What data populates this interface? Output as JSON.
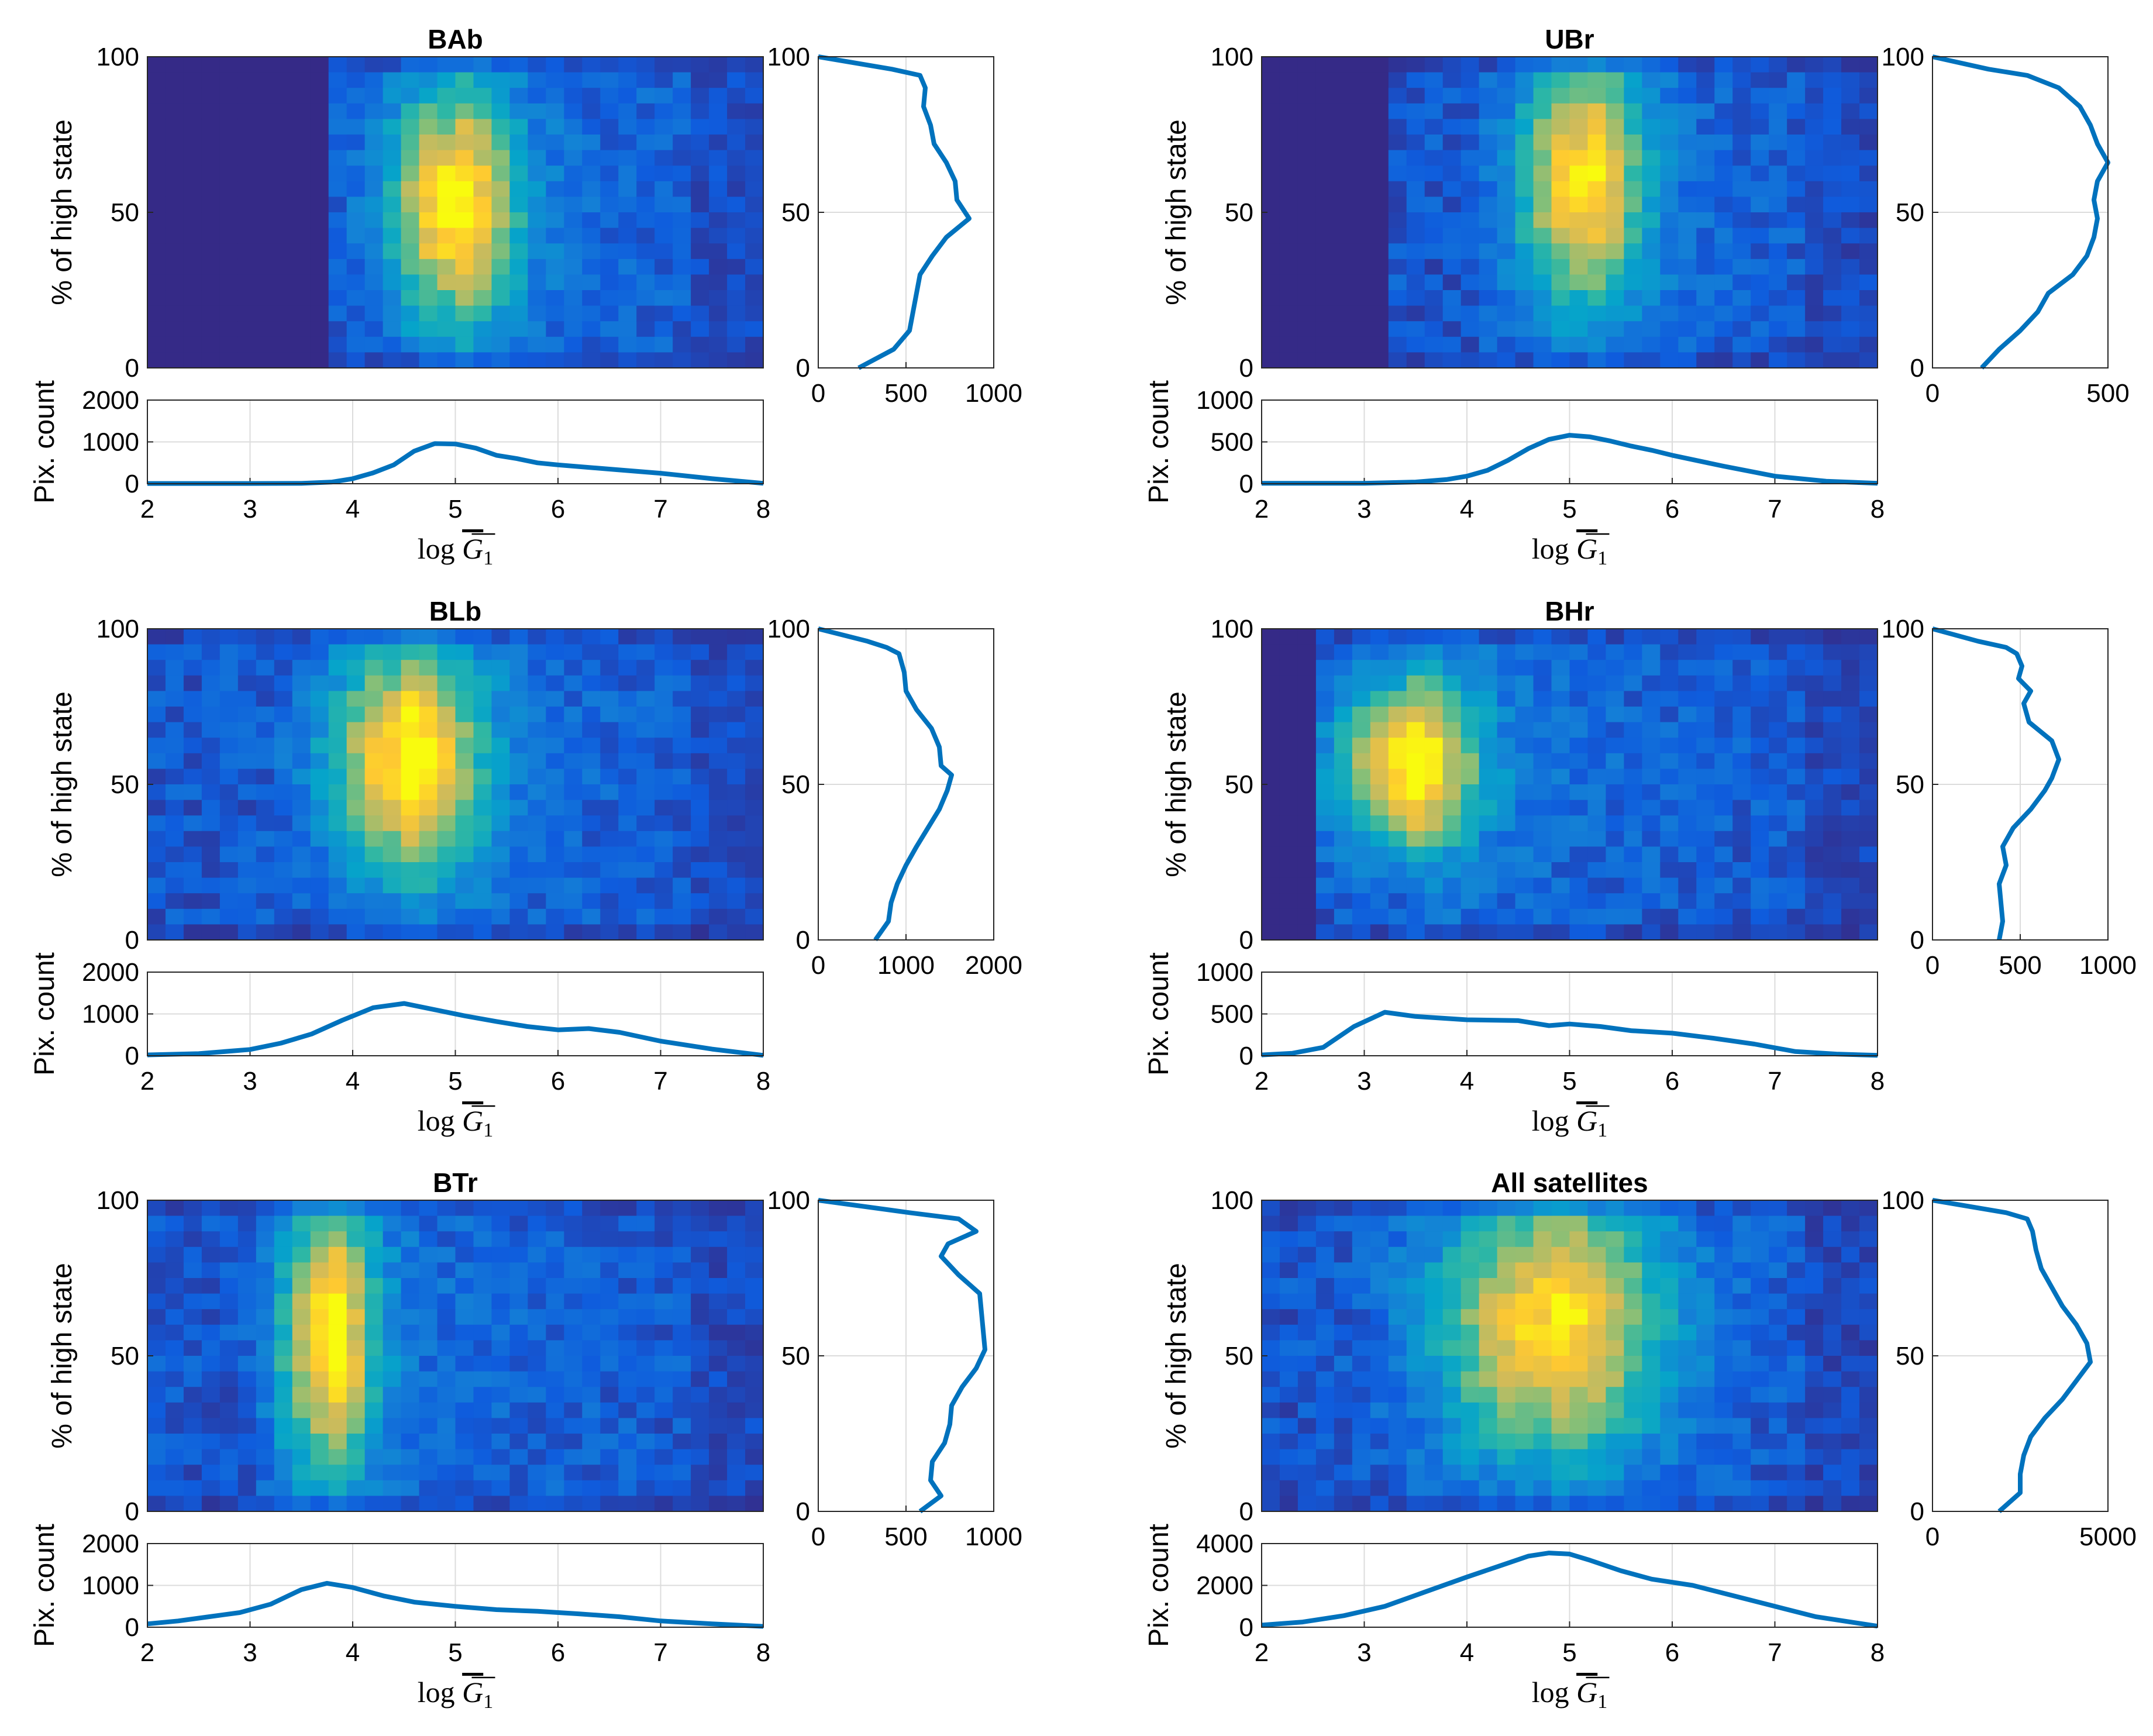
{
  "figure": {
    "colors": {
      "line": "#0072BD",
      "axis": "#262626",
      "grid": "#dcdcdc",
      "colormap": [
        "#352a87",
        "#0f5cdd",
        "#1481d6",
        "#06a4ca",
        "#2eb7a4",
        "#87bf77",
        "#d1bb59",
        "#fec832",
        "#f9fb0e"
      ]
    },
    "common": {
      "heatmap_ylabel": "% of high state",
      "hist_ylabel": "Pix. count",
      "xlabel_main": "log",
      "xlabel_var": "G",
      "xlabel_sub": "1",
      "heatmap_xrange": [
        2,
        8
      ],
      "heatmap_yticks": [
        "0",
        "50",
        "100"
      ],
      "hist_xticks": [
        "2",
        "3",
        "4",
        "5",
        "6",
        "7",
        "8"
      ]
    },
    "panels": [
      {
        "title": "BAb",
        "heat": {
          "x_peak": 4.95,
          "y_peak": 52,
          "sx": 0.42,
          "sy": 26,
          "tail": 0.35,
          "xmin_data": 3.8,
          "intensity": 1.0
        },
        "hist_yticks": [
          "0",
          "1000",
          "2000"
        ],
        "side_xticks": [
          "0",
          "500",
          "1000"
        ]
      },
      {
        "title": "UBr",
        "heat": {
          "x_peak": 5.1,
          "y_peak": 60,
          "sx": 0.42,
          "sy": 28,
          "tail": 0.3,
          "xmin_data": 3.2,
          "intensity": 0.95
        },
        "hist_yticks": [
          "0",
          "500",
          "1000"
        ],
        "side_xticks": [
          "0",
          "500"
        ]
      },
      {
        "title": "BLb",
        "heat": {
          "x_peak": 4.5,
          "y_peak": 58,
          "sx": 0.5,
          "sy": 25,
          "tail": 0.35,
          "xmin_data": 2.0,
          "intensity": 1.0
        },
        "hist_yticks": [
          "0",
          "1000",
          "2000"
        ],
        "side_xticks": [
          "0",
          "1000",
          "2000"
        ]
      },
      {
        "title": "BHr",
        "heat": {
          "x_peak": 3.4,
          "y_peak": 56,
          "sx": 0.45,
          "sy": 18,
          "tail": 0.5,
          "xmin_data": 2.5,
          "intensity": 1.0
        },
        "hist_yticks": [
          "0",
          "500",
          "1000"
        ],
        "side_xticks": [
          "0",
          "500",
          "1000"
        ]
      },
      {
        "title": "BTr",
        "heat": {
          "x_peak": 3.75,
          "y_peak": 56,
          "sx": 0.32,
          "sy": 30,
          "tail": 0.3,
          "xmin_data": 2.0,
          "intensity": 1.0
        },
        "hist_yticks": [
          "0",
          "1000",
          "2000"
        ],
        "side_xticks": [
          "0",
          "500",
          "1000"
        ]
      },
      {
        "title": "All satellites",
        "heat": {
          "x_peak": 4.8,
          "y_peak": 60,
          "sx": 0.75,
          "sy": 30,
          "tail": 0.2,
          "xmin_data": 2.0,
          "intensity": 0.95
        },
        "hist_yticks": [
          "0",
          "2000",
          "4000"
        ],
        "side_xticks": [
          "0",
          "5000"
        ]
      }
    ]
  },
  "chart_data": [
    {
      "type": "heatmap",
      "title": "BAb",
      "xlabel": "log G̅₁",
      "ylabel": "% of high state",
      "xlim": [
        2,
        8
      ],
      "ylim": [
        0,
        100
      ],
      "hist": {
        "type": "line",
        "ylabel": "Pix. count",
        "ylim": [
          0,
          2000
        ],
        "x": [
          2,
          2.5,
          3,
          3.5,
          3.8,
          4.0,
          4.2,
          4.4,
          4.6,
          4.8,
          5.0,
          5.2,
          5.4,
          5.6,
          5.8,
          6.0,
          6.5,
          7.0,
          7.5,
          8.0
        ],
        "y": [
          5,
          5,
          5,
          8,
          40,
          120,
          260,
          450,
          780,
          960,
          950,
          850,
          680,
          600,
          500,
          450,
          350,
          250,
          120,
          10
        ]
      },
      "side": {
        "type": "line",
        "xlim": [
          0,
          1000
        ],
        "ylim": [
          0,
          100
        ],
        "y": [
          0,
          6,
          12,
          18,
          24,
          30,
          36,
          42,
          48,
          54,
          60,
          66,
          72,
          78,
          84,
          90,
          94,
          96,
          100
        ],
        "x": [
          230,
          430,
          520,
          540,
          560,
          580,
          650,
          730,
          860,
          790,
          780,
          730,
          660,
          640,
          600,
          610,
          580,
          420,
          0
        ]
      }
    },
    {
      "type": "heatmap",
      "title": "UBr",
      "xlabel": "log G̅₁",
      "ylabel": "% of high state",
      "xlim": [
        2,
        8
      ],
      "ylim": [
        0,
        100
      ],
      "hist": {
        "type": "line",
        "ylabel": "Pix. count",
        "ylim": [
          0,
          1000
        ],
        "x": [
          2,
          2.5,
          3,
          3.5,
          3.8,
          4.0,
          4.2,
          4.4,
          4.6,
          4.8,
          5.0,
          5.2,
          5.4,
          5.6,
          5.8,
          6.0,
          6.5,
          7.0,
          7.5,
          8.0
        ],
        "y": [
          5,
          5,
          5,
          20,
          50,
          90,
          160,
          280,
          420,
          530,
          580,
          560,
          510,
          450,
          400,
          340,
          210,
          90,
          30,
          5
        ]
      },
      "side": {
        "type": "line",
        "xlim": [
          0,
          500
        ],
        "ylim": [
          0,
          100
        ],
        "y": [
          0,
          6,
          12,
          18,
          24,
          30,
          36,
          42,
          48,
          54,
          60,
          66,
          72,
          78,
          84,
          90,
          94,
          96,
          100
        ],
        "x": [
          140,
          190,
          250,
          300,
          330,
          400,
          440,
          460,
          470,
          460,
          470,
          500,
          470,
          450,
          420,
          360,
          270,
          160,
          0
        ]
      }
    },
    {
      "type": "heatmap",
      "title": "BLb",
      "xlabel": "log G̅₁",
      "ylabel": "% of high state",
      "xlim": [
        2,
        8
      ],
      "ylim": [
        0,
        100
      ],
      "hist": {
        "type": "line",
        "ylabel": "Pix. count",
        "ylim": [
          0,
          2000
        ],
        "x": [
          2,
          2.5,
          3,
          3.3,
          3.6,
          3.9,
          4.2,
          4.5,
          4.8,
          5.1,
          5.4,
          5.7,
          6.0,
          6.3,
          6.6,
          7.0,
          7.5,
          8.0
        ],
        "y": [
          20,
          50,
          150,
          300,
          520,
          850,
          1150,
          1250,
          1100,
          950,
          820,
          700,
          620,
          650,
          560,
          350,
          160,
          10
        ]
      },
      "side": {
        "type": "line",
        "xlim": [
          0,
          2000
        ],
        "ylim": [
          0,
          100
        ],
        "y": [
          0,
          6,
          12,
          18,
          24,
          30,
          36,
          42,
          48,
          53,
          56,
          62,
          68,
          74,
          80,
          86,
          92,
          94,
          96,
          100
        ],
        "x": [
          650,
          800,
          830,
          900,
          1000,
          1120,
          1250,
          1380,
          1470,
          1520,
          1400,
          1380,
          1290,
          1120,
          1000,
          980,
          920,
          780,
          560,
          0
        ]
      }
    },
    {
      "type": "heatmap",
      "title": "BHr",
      "xlabel": "log G̅₁",
      "ylabel": "% of high state",
      "xlim": [
        2,
        8
      ],
      "ylim": [
        0,
        100
      ],
      "hist": {
        "type": "line",
        "ylabel": "Pix. count",
        "ylim": [
          0,
          1000
        ],
        "x": [
          2,
          2.3,
          2.6,
          2.9,
          3.2,
          3.5,
          4.0,
          4.5,
          4.8,
          5.0,
          5.3,
          5.6,
          6.0,
          6.4,
          6.8,
          7.2,
          7.6,
          8.0
        ],
        "y": [
          10,
          30,
          100,
          350,
          520,
          470,
          430,
          420,
          360,
          380,
          350,
          300,
          270,
          210,
          140,
          50,
          20,
          5
        ]
      },
      "side": {
        "type": "line",
        "xlim": [
          0,
          1000
        ],
        "ylim": [
          0,
          100
        ],
        "y": [
          0,
          6,
          12,
          18,
          24,
          30,
          36,
          42,
          48,
          52,
          58,
          64,
          70,
          76,
          80,
          84,
          88,
          92,
          94,
          96,
          100
        ],
        "x": [
          380,
          400,
          390,
          380,
          420,
          400,
          460,
          560,
          640,
          680,
          720,
          680,
          550,
          520,
          560,
          490,
          510,
          480,
          420,
          260,
          0
        ]
      }
    },
    {
      "type": "heatmap",
      "title": "BTr",
      "xlabel": "log G̅₁",
      "ylabel": "% of high state",
      "xlim": [
        2,
        8
      ],
      "ylim": [
        0,
        100
      ],
      "hist": {
        "type": "line",
        "ylabel": "Pix. count",
        "ylim": [
          0,
          2000
        ],
        "x": [
          2,
          2.3,
          2.6,
          2.9,
          3.2,
          3.5,
          3.75,
          4.0,
          4.3,
          4.6,
          5.0,
          5.4,
          5.8,
          6.2,
          6.6,
          7.0,
          7.5,
          8.0
        ],
        "y": [
          80,
          150,
          250,
          350,
          550,
          900,
          1050,
          950,
          750,
          600,
          500,
          420,
          380,
          320,
          250,
          150,
          80,
          20
        ]
      },
      "side": {
        "type": "line",
        "xlim": [
          0,
          1000
        ],
        "ylim": [
          0,
          100
        ],
        "y": [
          0,
          5,
          10,
          16,
          22,
          28,
          34,
          40,
          46,
          52,
          58,
          64,
          70,
          76,
          82,
          86,
          90,
          94,
          96,
          100
        ],
        "x": [
          580,
          700,
          640,
          650,
          720,
          750,
          760,
          820,
          900,
          950,
          940,
          930,
          920,
          800,
          700,
          740,
          900,
          800,
          520,
          0
        ]
      }
    },
    {
      "type": "heatmap",
      "title": "All satellites",
      "xlabel": "log G̅₁",
      "ylabel": "% of high state",
      "xlim": [
        2,
        8
      ],
      "ylim": [
        0,
        100
      ],
      "hist": {
        "type": "line",
        "ylabel": "Pix. count",
        "ylim": [
          0,
          4000
        ],
        "x": [
          2,
          2.4,
          2.8,
          3.2,
          3.6,
          4.0,
          4.3,
          4.6,
          4.8,
          5.0,
          5.2,
          5.5,
          5.8,
          6.2,
          6.6,
          7.0,
          7.4,
          7.8,
          8.0
        ],
        "y": [
          100,
          250,
          550,
          1000,
          1700,
          2400,
          2900,
          3400,
          3550,
          3500,
          3200,
          2700,
          2300,
          2000,
          1500,
          1000,
          500,
          200,
          50
        ]
      },
      "side": {
        "type": "line",
        "xlim": [
          0,
          5000
        ],
        "ylim": [
          0,
          100
        ],
        "y": [
          0,
          6,
          12,
          18,
          24,
          30,
          36,
          42,
          48,
          54,
          60,
          66,
          72,
          78,
          84,
          90,
          94,
          96,
          100
        ],
        "x": [
          1900,
          2500,
          2500,
          2600,
          2800,
          3200,
          3700,
          4100,
          4500,
          4400,
          4100,
          3700,
          3400,
          3100,
          2950,
          2850,
          2700,
          2100,
          0
        ]
      }
    }
  ]
}
